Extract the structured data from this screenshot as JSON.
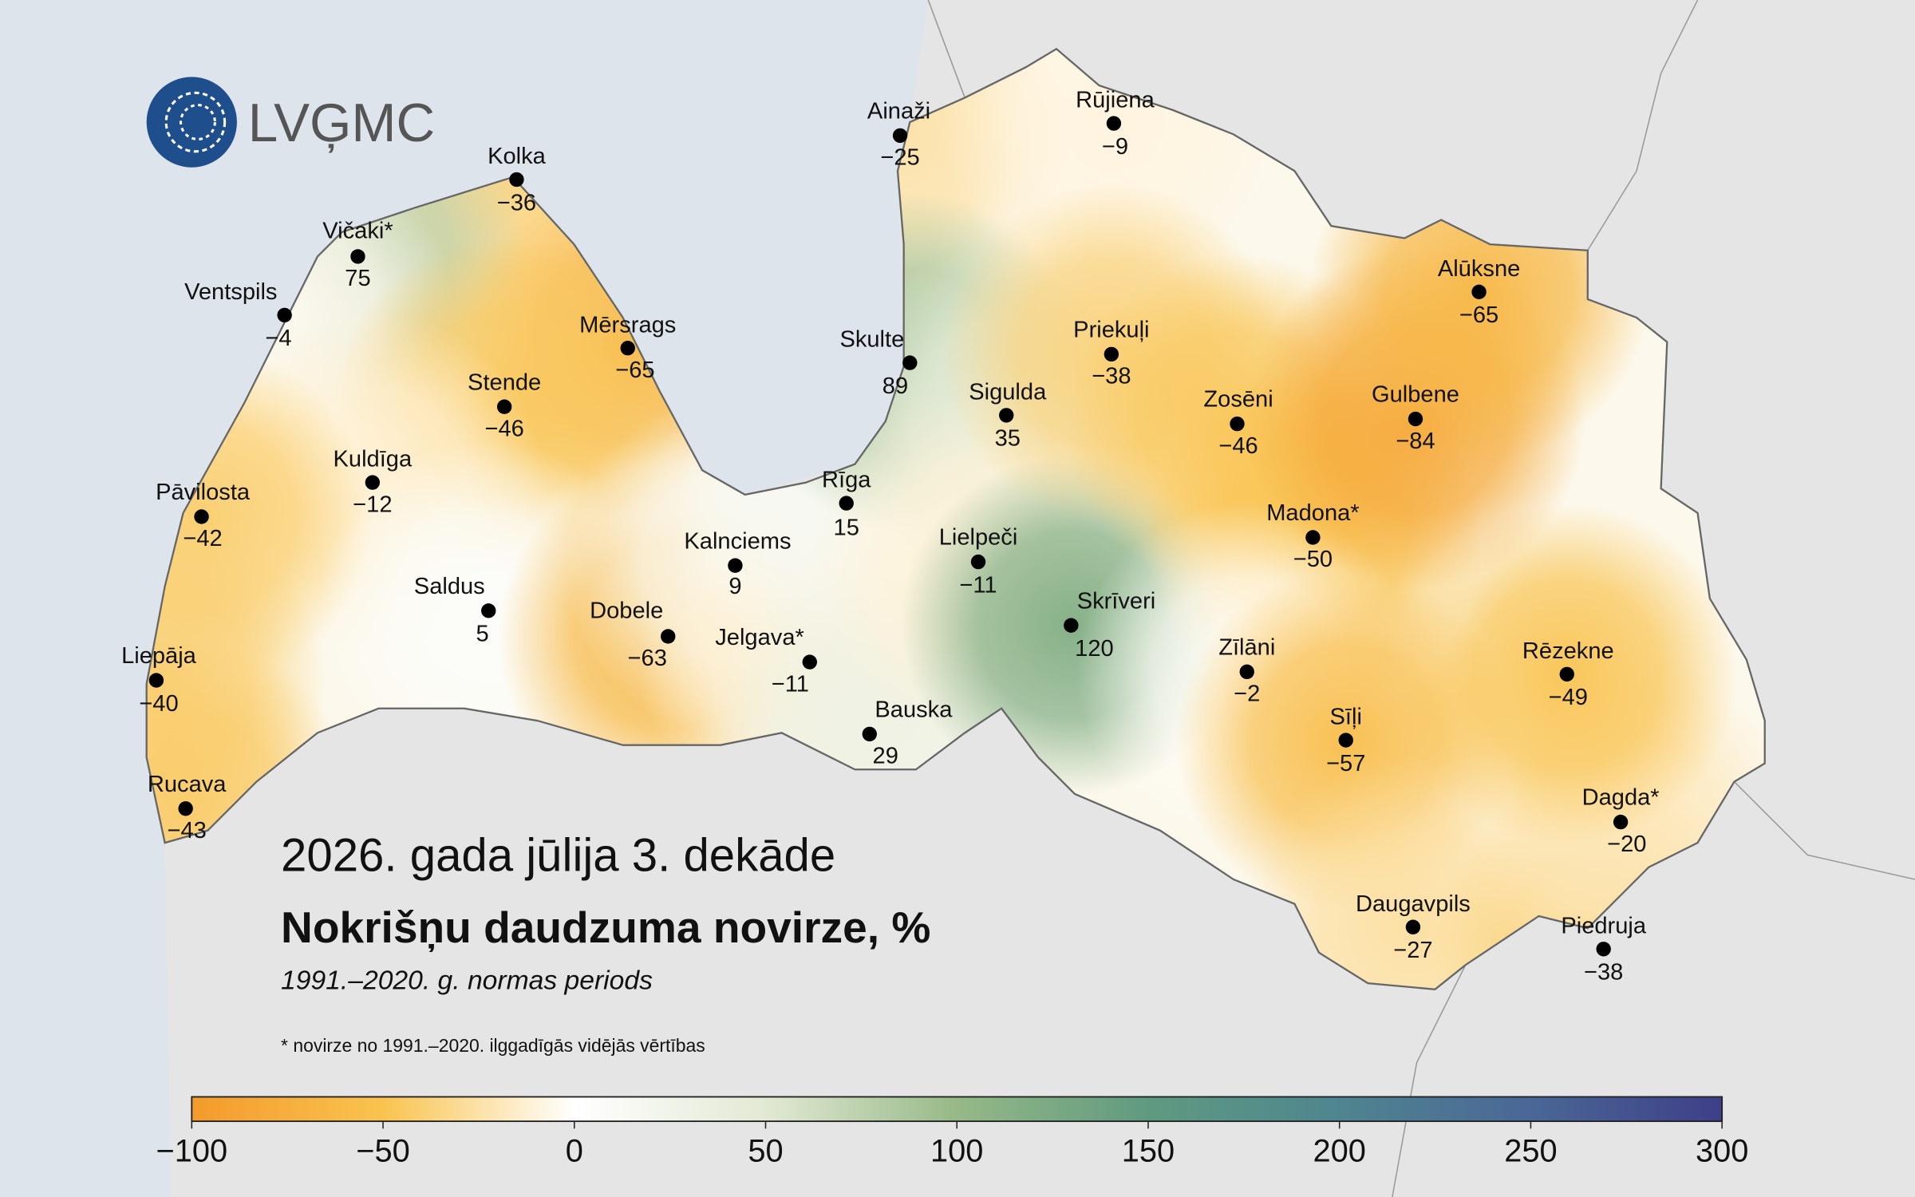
{
  "logo": "LVĢMC",
  "title": "2026. gada jūlija 3. dekāde",
  "subtitle": "Nokrišņu daudzuma novirze, %",
  "period": "1991.–2020. g. normas periods",
  "note": "* novirze no 1991.–2020. ilggadīgās vidējās vērtības",
  "stations": [
    {
      "name": "Kolka",
      "value": -36,
      "label": "−36"
    },
    {
      "name": "Vičaki*",
      "value": 75,
      "label": "75"
    },
    {
      "name": "Ventspils",
      "value": -4,
      "label": "−4"
    },
    {
      "name": "Mērsrags",
      "value": -65,
      "label": "−65"
    },
    {
      "name": "Stende",
      "value": -46,
      "label": "−46"
    },
    {
      "name": "Kuldīga",
      "value": -12,
      "label": "−12"
    },
    {
      "name": "Pāvilosta",
      "value": -42,
      "label": "−42"
    },
    {
      "name": "Saldus",
      "value": 5,
      "label": "5"
    },
    {
      "name": "Liepāja",
      "value": -40,
      "label": "−40"
    },
    {
      "name": "Rucava",
      "value": -43,
      "label": "−43"
    },
    {
      "name": "Dobele",
      "value": -63,
      "label": "−63"
    },
    {
      "name": "Kalnciems",
      "value": 9,
      "label": "9"
    },
    {
      "name": "Jelgava*",
      "value": -11,
      "label": "−11"
    },
    {
      "name": "Rīga",
      "value": 15,
      "label": "15"
    },
    {
      "name": "Bauska",
      "value": 29,
      "label": "29"
    },
    {
      "name": "Ainaži",
      "value": -25,
      "label": "−25"
    },
    {
      "name": "Skulte",
      "value": 89,
      "label": "89"
    },
    {
      "name": "Sigulda",
      "value": 35,
      "label": "35"
    },
    {
      "name": "Lielpeči",
      "value": -11,
      "label": "−11"
    },
    {
      "name": "Skrīveri",
      "value": 120,
      "label": "120"
    },
    {
      "name": "Rūjiena",
      "value": -9,
      "label": "−9"
    },
    {
      "name": "Priekuļi",
      "value": -38,
      "label": "−38"
    },
    {
      "name": "Zosēni",
      "value": -46,
      "label": "−46"
    },
    {
      "name": "Madona*",
      "value": -50,
      "label": "−50"
    },
    {
      "name": "Zīlāni",
      "value": -2,
      "label": "−2"
    },
    {
      "name": "Sīļi",
      "value": -57,
      "label": "−57"
    },
    {
      "name": "Daugavpils",
      "value": -27,
      "label": "−27"
    },
    {
      "name": "Piedruja",
      "value": -38,
      "label": "−38"
    },
    {
      "name": "Dagda*",
      "value": -20,
      "label": "−20"
    },
    {
      "name": "Rēzekne",
      "value": -49,
      "label": "−49"
    },
    {
      "name": "Gulbene",
      "value": -84,
      "label": "−84"
    },
    {
      "name": "Alūksne",
      "value": -65,
      "label": "−65"
    }
  ],
  "colorbar": {
    "lim": [
      -100,
      300
    ],
    "ticks": [
      {
        "value": -100,
        "label": "−100"
      },
      {
        "value": -50,
        "label": "−50"
      },
      0,
      50,
      100,
      150,
      200,
      250,
      300
    ],
    "colors": [
      "#f39a2c",
      "#f9c34f",
      "#ffffff",
      "#e2e9d3",
      "#96b987",
      "#5f9a80",
      "#4f8590",
      "#4a6797",
      "#3e3f88"
    ]
  }
}
